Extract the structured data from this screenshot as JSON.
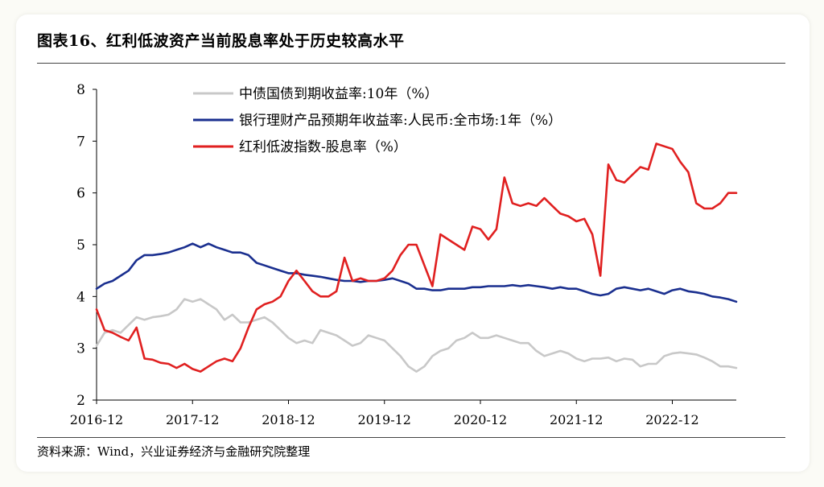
{
  "title": "图表16、红利低波资产当前股息率处于历史较高水平",
  "source": "资料来源：Wind，兴业证券经济与金融研究院整理",
  "chart_data": {
    "type": "line",
    "ylim": [
      2,
      8
    ],
    "y_ticks": [
      "2",
      "3",
      "4",
      "5",
      "6",
      "7",
      "8"
    ],
    "x_range": [
      "2016-12",
      "2023-08"
    ],
    "x_ticks": [
      "2016-12",
      "2017-12",
      "2018-12",
      "2019-12",
      "2020-12",
      "2021-12",
      "2022-12"
    ],
    "grid": false,
    "legend_position": "top-left",
    "series": [
      {
        "name": "中债国债到期收益率:10年（%）",
        "color": "#c8c8c8",
        "points": [
          [
            "2016-12",
            3.05
          ],
          [
            "2017-01",
            3.3
          ],
          [
            "2017-02",
            3.35
          ],
          [
            "2017-03",
            3.3
          ],
          [
            "2017-04",
            3.45
          ],
          [
            "2017-05",
            3.6
          ],
          [
            "2017-06",
            3.55
          ],
          [
            "2017-07",
            3.6
          ],
          [
            "2017-08",
            3.62
          ],
          [
            "2017-09",
            3.65
          ],
          [
            "2017-10",
            3.75
          ],
          [
            "2017-11",
            3.95
          ],
          [
            "2017-12",
            3.9
          ],
          [
            "2018-01",
            3.95
          ],
          [
            "2018-02",
            3.85
          ],
          [
            "2018-03",
            3.75
          ],
          [
            "2018-04",
            3.55
          ],
          [
            "2018-05",
            3.65
          ],
          [
            "2018-06",
            3.5
          ],
          [
            "2018-07",
            3.5
          ],
          [
            "2018-08",
            3.55
          ],
          [
            "2018-09",
            3.6
          ],
          [
            "2018-10",
            3.5
          ],
          [
            "2018-11",
            3.35
          ],
          [
            "2018-12",
            3.2
          ],
          [
            "2019-01",
            3.1
          ],
          [
            "2019-02",
            3.15
          ],
          [
            "2019-03",
            3.1
          ],
          [
            "2019-04",
            3.35
          ],
          [
            "2019-05",
            3.3
          ],
          [
            "2019-06",
            3.25
          ],
          [
            "2019-07",
            3.15
          ],
          [
            "2019-08",
            3.05
          ],
          [
            "2019-09",
            3.1
          ],
          [
            "2019-10",
            3.25
          ],
          [
            "2019-11",
            3.2
          ],
          [
            "2019-12",
            3.15
          ],
          [
            "2020-01",
            3.0
          ],
          [
            "2020-02",
            2.85
          ],
          [
            "2020-03",
            2.65
          ],
          [
            "2020-04",
            2.55
          ],
          [
            "2020-05",
            2.65
          ],
          [
            "2020-06",
            2.85
          ],
          [
            "2020-07",
            2.95
          ],
          [
            "2020-08",
            3.0
          ],
          [
            "2020-09",
            3.15
          ],
          [
            "2020-10",
            3.2
          ],
          [
            "2020-11",
            3.3
          ],
          [
            "2020-12",
            3.2
          ],
          [
            "2021-01",
            3.2
          ],
          [
            "2021-02",
            3.25
          ],
          [
            "2021-03",
            3.2
          ],
          [
            "2021-04",
            3.15
          ],
          [
            "2021-05",
            3.1
          ],
          [
            "2021-06",
            3.1
          ],
          [
            "2021-07",
            2.95
          ],
          [
            "2021-08",
            2.85
          ],
          [
            "2021-09",
            2.9
          ],
          [
            "2021-10",
            2.95
          ],
          [
            "2021-11",
            2.9
          ],
          [
            "2021-12",
            2.8
          ],
          [
            "2022-01",
            2.75
          ],
          [
            "2022-02",
            2.8
          ],
          [
            "2022-03",
            2.8
          ],
          [
            "2022-04",
            2.82
          ],
          [
            "2022-05",
            2.75
          ],
          [
            "2022-06",
            2.8
          ],
          [
            "2022-07",
            2.78
          ],
          [
            "2022-08",
            2.65
          ],
          [
            "2022-09",
            2.7
          ],
          [
            "2022-10",
            2.7
          ],
          [
            "2022-11",
            2.85
          ],
          [
            "2022-12",
            2.9
          ],
          [
            "2023-01",
            2.92
          ],
          [
            "2023-02",
            2.9
          ],
          [
            "2023-03",
            2.88
          ],
          [
            "2023-04",
            2.82
          ],
          [
            "2023-05",
            2.75
          ],
          [
            "2023-06",
            2.65
          ],
          [
            "2023-07",
            2.65
          ],
          [
            "2023-08",
            2.62
          ]
        ]
      },
      {
        "name": "银行理财产品预期年收益率:人民币:全市场:1年（%）",
        "color": "#1a2f8f",
        "points": [
          [
            "2016-12",
            4.15
          ],
          [
            "2017-01",
            4.25
          ],
          [
            "2017-02",
            4.3
          ],
          [
            "2017-03",
            4.4
          ],
          [
            "2017-04",
            4.5
          ],
          [
            "2017-05",
            4.7
          ],
          [
            "2017-06",
            4.8
          ],
          [
            "2017-07",
            4.8
          ],
          [
            "2017-08",
            4.82
          ],
          [
            "2017-09",
            4.85
          ],
          [
            "2017-10",
            4.9
          ],
          [
            "2017-11",
            4.95
          ],
          [
            "2017-12",
            5.02
          ],
          [
            "2018-01",
            4.95
          ],
          [
            "2018-02",
            5.02
          ],
          [
            "2018-03",
            4.95
          ],
          [
            "2018-04",
            4.9
          ],
          [
            "2018-05",
            4.85
          ],
          [
            "2018-06",
            4.85
          ],
          [
            "2018-07",
            4.8
          ],
          [
            "2018-08",
            4.65
          ],
          [
            "2018-09",
            4.6
          ],
          [
            "2018-10",
            4.55
          ],
          [
            "2018-11",
            4.5
          ],
          [
            "2018-12",
            4.45
          ],
          [
            "2019-01",
            4.45
          ],
          [
            "2019-02",
            4.42
          ],
          [
            "2019-03",
            4.4
          ],
          [
            "2019-04",
            4.38
          ],
          [
            "2019-05",
            4.35
          ],
          [
            "2019-06",
            4.32
          ],
          [
            "2019-07",
            4.3
          ],
          [
            "2019-08",
            4.3
          ],
          [
            "2019-09",
            4.28
          ],
          [
            "2019-10",
            4.3
          ],
          [
            "2019-11",
            4.3
          ],
          [
            "2019-12",
            4.32
          ],
          [
            "2020-01",
            4.35
          ],
          [
            "2020-02",
            4.3
          ],
          [
            "2020-03",
            4.25
          ],
          [
            "2020-04",
            4.15
          ],
          [
            "2020-05",
            4.15
          ],
          [
            "2020-06",
            4.12
          ],
          [
            "2020-07",
            4.12
          ],
          [
            "2020-08",
            4.15
          ],
          [
            "2020-09",
            4.15
          ],
          [
            "2020-10",
            4.15
          ],
          [
            "2020-11",
            4.18
          ],
          [
            "2020-12",
            4.18
          ],
          [
            "2021-01",
            4.2
          ],
          [
            "2021-02",
            4.2
          ],
          [
            "2021-03",
            4.2
          ],
          [
            "2021-04",
            4.22
          ],
          [
            "2021-05",
            4.2
          ],
          [
            "2021-06",
            4.22
          ],
          [
            "2021-07",
            4.2
          ],
          [
            "2021-08",
            4.18
          ],
          [
            "2021-09",
            4.15
          ],
          [
            "2021-10",
            4.18
          ],
          [
            "2021-11",
            4.15
          ],
          [
            "2021-12",
            4.15
          ],
          [
            "2022-01",
            4.1
          ],
          [
            "2022-02",
            4.05
          ],
          [
            "2022-03",
            4.02
          ],
          [
            "2022-04",
            4.05
          ],
          [
            "2022-05",
            4.15
          ],
          [
            "2022-06",
            4.18
          ],
          [
            "2022-07",
            4.15
          ],
          [
            "2022-08",
            4.12
          ],
          [
            "2022-09",
            4.15
          ],
          [
            "2022-10",
            4.1
          ],
          [
            "2022-11",
            4.05
          ],
          [
            "2022-12",
            4.12
          ],
          [
            "2023-01",
            4.15
          ],
          [
            "2023-02",
            4.1
          ],
          [
            "2023-03",
            4.08
          ],
          [
            "2023-04",
            4.05
          ],
          [
            "2023-05",
            4.0
          ],
          [
            "2023-06",
            3.98
          ],
          [
            "2023-07",
            3.95
          ],
          [
            "2023-08",
            3.9
          ]
        ]
      },
      {
        "name": "红利低波指数-股息率（%）",
        "color": "#e02020",
        "points": [
          [
            "2016-12",
            3.75
          ],
          [
            "2017-01",
            3.35
          ],
          [
            "2017-02",
            3.3
          ],
          [
            "2017-03",
            3.22
          ],
          [
            "2017-04",
            3.15
          ],
          [
            "2017-05",
            3.4
          ],
          [
            "2017-06",
            2.8
          ],
          [
            "2017-07",
            2.78
          ],
          [
            "2017-08",
            2.72
          ],
          [
            "2017-09",
            2.7
          ],
          [
            "2017-10",
            2.62
          ],
          [
            "2017-11",
            2.7
          ],
          [
            "2017-12",
            2.6
          ],
          [
            "2018-01",
            2.55
          ],
          [
            "2018-02",
            2.65
          ],
          [
            "2018-03",
            2.75
          ],
          [
            "2018-04",
            2.8
          ],
          [
            "2018-05",
            2.75
          ],
          [
            "2018-06",
            3.0
          ],
          [
            "2018-07",
            3.4
          ],
          [
            "2018-08",
            3.75
          ],
          [
            "2018-09",
            3.85
          ],
          [
            "2018-10",
            3.9
          ],
          [
            "2018-11",
            4.0
          ],
          [
            "2018-12",
            4.3
          ],
          [
            "2019-01",
            4.5
          ],
          [
            "2019-02",
            4.3
          ],
          [
            "2019-03",
            4.1
          ],
          [
            "2019-04",
            4.0
          ],
          [
            "2019-05",
            4.0
          ],
          [
            "2019-06",
            4.1
          ],
          [
            "2019-07",
            4.75
          ],
          [
            "2019-08",
            4.3
          ],
          [
            "2019-09",
            4.35
          ],
          [
            "2019-10",
            4.3
          ],
          [
            "2019-11",
            4.3
          ],
          [
            "2019-12",
            4.35
          ],
          [
            "2020-01",
            4.5
          ],
          [
            "2020-02",
            4.8
          ],
          [
            "2020-03",
            5.0
          ],
          [
            "2020-04",
            5.0
          ],
          [
            "2020-05",
            4.6
          ],
          [
            "2020-06",
            4.2
          ],
          [
            "2020-07",
            5.2
          ],
          [
            "2020-08",
            5.1
          ],
          [
            "2020-09",
            5.0
          ],
          [
            "2020-10",
            4.9
          ],
          [
            "2020-11",
            5.35
          ],
          [
            "2020-12",
            5.3
          ],
          [
            "2021-01",
            5.1
          ],
          [
            "2021-02",
            5.3
          ],
          [
            "2021-03",
            6.3
          ],
          [
            "2021-04",
            5.8
          ],
          [
            "2021-05",
            5.75
          ],
          [
            "2021-06",
            5.8
          ],
          [
            "2021-07",
            5.75
          ],
          [
            "2021-08",
            5.9
          ],
          [
            "2021-09",
            5.75
          ],
          [
            "2021-10",
            5.6
          ],
          [
            "2021-11",
            5.55
          ],
          [
            "2021-12",
            5.45
          ],
          [
            "2022-01",
            5.5
          ],
          [
            "2022-02",
            5.2
          ],
          [
            "2022-03",
            4.4
          ],
          [
            "2022-04",
            6.55
          ],
          [
            "2022-05",
            6.25
          ],
          [
            "2022-06",
            6.2
          ],
          [
            "2022-07",
            6.35
          ],
          [
            "2022-08",
            6.5
          ],
          [
            "2022-09",
            6.45
          ],
          [
            "2022-10",
            6.95
          ],
          [
            "2022-11",
            6.9
          ],
          [
            "2022-12",
            6.85
          ],
          [
            "2023-01",
            6.6
          ],
          [
            "2023-02",
            6.4
          ],
          [
            "2023-03",
            5.8
          ],
          [
            "2023-04",
            5.7
          ],
          [
            "2023-05",
            5.7
          ],
          [
            "2023-06",
            5.8
          ],
          [
            "2023-07",
            6.0
          ],
          [
            "2023-08",
            6.0
          ]
        ]
      }
    ]
  }
}
